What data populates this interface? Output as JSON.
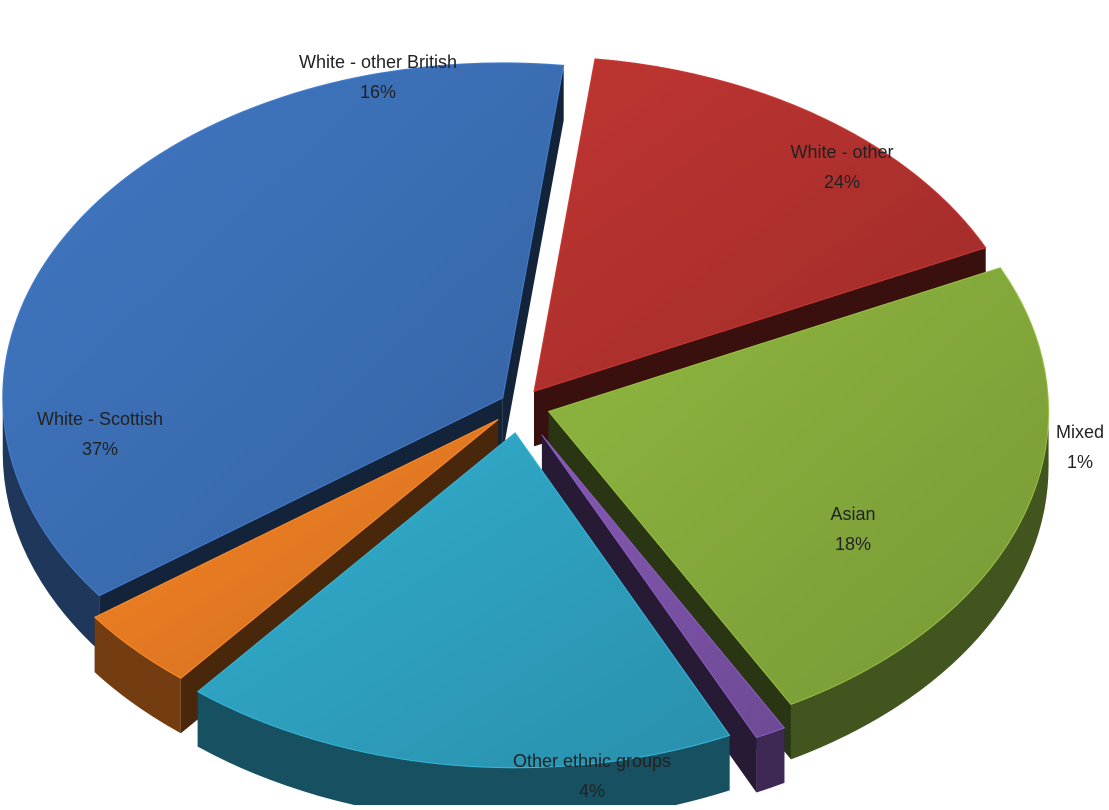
{
  "chart_data": {
    "type": "pie",
    "style": "3d-exploded",
    "title": "",
    "series": [
      {
        "slices": [
          {
            "label": "White - other British",
            "value": 16,
            "display": "16%",
            "color": "#b1312d"
          },
          {
            "label": "White - other",
            "value": 24,
            "display": "24%",
            "color": "#84a93b"
          },
          {
            "label": "Mixed",
            "value": 1,
            "display": "1%",
            "color": "#7a52a6"
          },
          {
            "label": "Asian",
            "value": 18,
            "display": "18%",
            "color": "#2ea0bf"
          },
          {
            "label": "Other ethnic groups",
            "value": 4,
            "display": "4%",
            "color": "#e57a22"
          },
          {
            "label": "White - Scottish",
            "value": 37,
            "display": "37%",
            "color": "#3b6eb4"
          }
        ]
      }
    ],
    "legend": "none",
    "data_labels": "category-and-percentage"
  }
}
